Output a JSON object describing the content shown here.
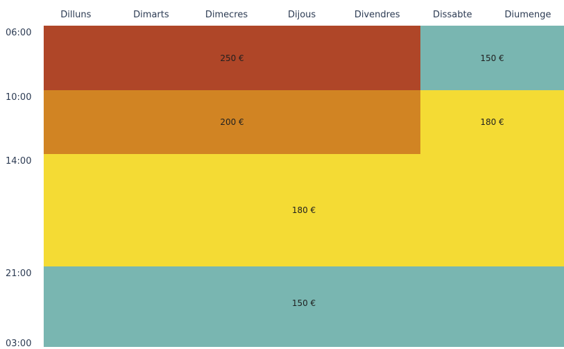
{
  "chart_data": {
    "type": "heatmap",
    "days": [
      "Dilluns",
      "Dimarts",
      "Dimecres",
      "Dijous",
      "Divendres",
      "Dissabte",
      "Diumenge"
    ],
    "time_ticks": [
      "06:00",
      "10:00",
      "14:00",
      "21:00",
      "03:00"
    ],
    "blocks": [
      {
        "id": "weekday-morning",
        "day_start": 0,
        "day_end": 5,
        "time_start": 0,
        "time_end": 1,
        "label": "250 €",
        "value": 250,
        "color": "#AF4628"
      },
      {
        "id": "weekend-morning",
        "day_start": 5,
        "day_end": 7,
        "time_start": 0,
        "time_end": 1,
        "label": "150 €",
        "value": 150,
        "color": "#79B6B1"
      },
      {
        "id": "weekday-midday",
        "day_start": 0,
        "day_end": 5,
        "time_start": 1,
        "time_end": 2,
        "label": "200 €",
        "value": 200,
        "color": "#D18423"
      },
      {
        "id": "weekend-midday",
        "day_start": 5,
        "day_end": 7,
        "time_start": 1,
        "time_end": 2,
        "label": "180 €",
        "value": 180,
        "color": "#F4DB34"
      },
      {
        "id": "afternoon-evening",
        "day_start": 0,
        "day_end": 7,
        "time_start": 2,
        "time_end": 3,
        "label": "180 €",
        "value": 180,
        "color": "#F4DB34"
      },
      {
        "id": "night",
        "day_start": 0,
        "day_end": 7,
        "time_start": 3,
        "time_end": 4,
        "label": "150 €",
        "value": 150,
        "color": "#79B6B1"
      }
    ]
  }
}
